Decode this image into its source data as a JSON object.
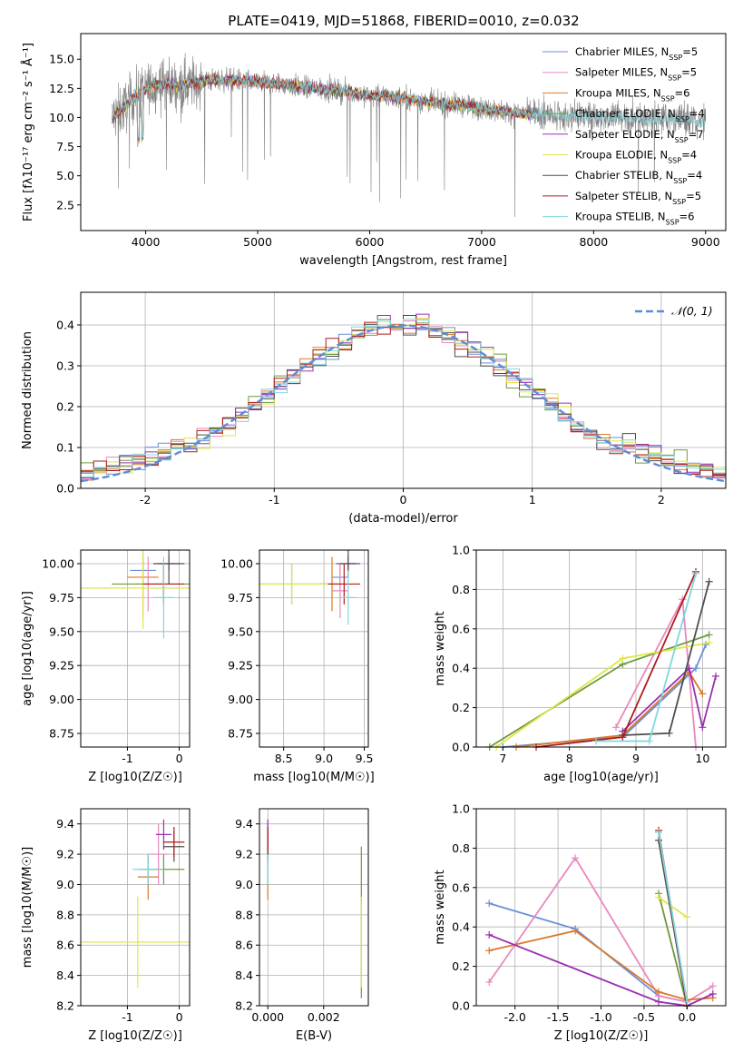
{
  "figure": {
    "title": "PLATE=0419, MJD=51868, FIBERID=0010, z=0.032"
  },
  "palette": {
    "models": [
      {
        "label": "Chabrier MILES, N",
        "sub": "SSP",
        "tail": "=5",
        "color": "#6b8fdc"
      },
      {
        "label": "Salpeter MILES, N",
        "sub": "SSP",
        "tail": "=5",
        "color": "#e889bd"
      },
      {
        "label": "Kroupa MILES, N",
        "sub": "SSP",
        "tail": "=6",
        "color": "#d9792c"
      },
      {
        "label": "Chabrier ELODIE, N",
        "sub": "SSP",
        "tail": "=4",
        "color": "#6c9a3c"
      },
      {
        "label": "Salpeter ELODIE, N",
        "sub": "SSP",
        "tail": "=7",
        "color": "#9b30b0"
      },
      {
        "label": "Kroupa ELODIE, N",
        "sub": "SSP",
        "tail": "=4",
        "color": "#dfe54c"
      },
      {
        "label": "Chabrier STELIB, N",
        "sub": "SSP",
        "tail": "=4",
        "color": "#4d4d4d"
      },
      {
        "label": "Salpeter STELIB, N",
        "sub": "SSP",
        "tail": "=5",
        "color": "#b01b1b"
      },
      {
        "label": "Kroupa STELIB, N",
        "sub": "SSP",
        "tail": "=6",
        "color": "#7fd7e0"
      }
    ],
    "data_color": "#7f7f7f",
    "gauss_color": "#5b8bd9"
  },
  "chart_data": [
    {
      "id": "spectrum",
      "type": "line",
      "xlabel": "wavelength [Angstrom, rest frame]",
      "ylabel": "Flux [fλ10⁻¹⁷ erg cm⁻² s⁻¹ Å⁻¹]",
      "xlim": [
        3420,
        9180
      ],
      "ylim": [
        0.3,
        17.2
      ],
      "xticks": [
        4000,
        5000,
        6000,
        7000,
        8000,
        9000
      ],
      "yticks": [
        2.5,
        5.0,
        7.5,
        10.0,
        12.5,
        15.0
      ],
      "continuum": {
        "x": [
          3700,
          3800,
          3900,
          4000,
          4100,
          4200,
          4300,
          4400,
          4500,
          4600,
          4800,
          5000,
          5200,
          5400,
          5600,
          5800,
          6000,
          6200,
          6400,
          6600,
          6800,
          7000,
          7200,
          7400
        ],
        "y": [
          10.0,
          10.8,
          11.8,
          12.4,
          12.8,
          12.9,
          12.7,
          12.9,
          13.1,
          13.2,
          13.2,
          13.0,
          12.9,
          12.6,
          12.4,
          12.2,
          11.9,
          11.8,
          11.5,
          11.2,
          11.1,
          10.8,
          10.5,
          10.3
        ]
      },
      "data_range": [
        3700,
        9000
      ]
    },
    {
      "id": "residuals",
      "type": "bar",
      "xlabel": "(data-model)/error",
      "ylabel": "Normed distribution",
      "xlim": [
        -2.5,
        2.5
      ],
      "ylim": [
        0,
        0.48
      ],
      "xticks": [
        -2,
        -1,
        0,
        1,
        2
      ],
      "yticks": [
        0.0,
        0.1,
        0.2,
        0.3,
        0.4
      ],
      "legend": "𝒩(0, 1)",
      "legend_position": "top-right",
      "bin_width": 0.1
    },
    {
      "id": "age_vs_Z",
      "type": "scatter",
      "xlabel": "Z [log10(Z/Z☉)]",
      "ylabel": "age  [log10(age/yr)]",
      "xlim": [
        -1.9,
        0.2
      ],
      "ylim": [
        8.65,
        10.1
      ],
      "xticks": [
        -1,
        0
      ],
      "yticks": [
        8.75,
        9.0,
        9.25,
        9.5,
        9.75,
        10.0
      ],
      "points": [
        {
          "x": -0.7,
          "y": 9.95,
          "xerr": 0.25,
          "yerr": 0.1
        },
        {
          "x": -0.6,
          "y": 9.85,
          "xerr": 0.25,
          "yerr": 0.2
        },
        {
          "x": -0.7,
          "y": 9.9,
          "xerr": 0.3,
          "yerr": 0.3
        },
        {
          "x": -0.3,
          "y": 9.85,
          "xerr": 1.0,
          "yerr": 0.15
        },
        {
          "x": -0.2,
          "y": 10.0,
          "xerr": 0.2,
          "yerr": 0.05
        },
        {
          "x": -0.7,
          "y": 9.82,
          "xerr": 1.2,
          "yerr": 0.3
        },
        {
          "x": -0.2,
          "y": 10.0,
          "xerr": 0.3,
          "yerr": 0.15
        },
        {
          "x": -0.3,
          "y": 9.85,
          "xerr": 0.4,
          "yerr": 0.15
        },
        {
          "x": -0.3,
          "y": 9.75,
          "xerr": 0.2,
          "yerr": 0.3
        }
      ]
    },
    {
      "id": "age_vs_mass",
      "type": "scatter",
      "xlabel": "mass [log10(M/M☉)]",
      "ylabel": "",
      "xlim": [
        8.2,
        9.55
      ],
      "ylim": [
        8.65,
        10.1
      ],
      "xticks": [
        8.5,
        9.0,
        9.5
      ],
      "yticks": [
        8.75,
        9.0,
        9.25,
        9.5,
        9.75,
        10.0
      ],
      "points": [
        {
          "x": 9.2,
          "y": 9.9,
          "xerr": 0.1,
          "yerr": 0.1
        },
        {
          "x": 9.2,
          "y": 9.8,
          "xerr": 0.1,
          "yerr": 0.2
        },
        {
          "x": 9.1,
          "y": 9.85,
          "xerr": 0.15,
          "yerr": 0.2
        },
        {
          "x": 8.6,
          "y": 9.85,
          "xerr": 0.6,
          "yerr": 0.15
        },
        {
          "x": 9.3,
          "y": 10.0,
          "xerr": 0.15,
          "yerr": 0.05
        },
        {
          "x": 8.6,
          "y": 9.85,
          "xerr": 0.6,
          "yerr": 0.15
        },
        {
          "x": 9.3,
          "y": 10.0,
          "xerr": 0.1,
          "yerr": 0.1
        },
        {
          "x": 9.25,
          "y": 9.85,
          "xerr": 0.2,
          "yerr": 0.15
        },
        {
          "x": 9.3,
          "y": 9.75,
          "xerr": 0.1,
          "yerr": 0.2
        }
      ]
    },
    {
      "id": "weight_vs_age",
      "type": "line",
      "xlabel": "age  [log10(age/yr)]",
      "ylabel": "mass weight",
      "xlim": [
        6.6,
        10.35
      ],
      "ylim": [
        0,
        1.0
      ],
      "xticks": [
        7,
        8,
        9,
        10
      ],
      "yticks": [
        0.0,
        0.2,
        0.4,
        0.6,
        0.8,
        1.0
      ],
      "series": [
        {
          "values": [
            [
              7.0,
              0.0
            ],
            [
              8.8,
              0.05
            ],
            [
              9.9,
              0.4
            ],
            [
              10.05,
              0.52
            ]
          ]
        },
        {
          "values": [
            [
              8.7,
              0.1
            ],
            [
              9.7,
              0.75
            ],
            [
              9.9,
              0.0
            ]
          ]
        },
        {
          "values": [
            [
              7.2,
              0.0
            ],
            [
              8.8,
              0.06
            ],
            [
              9.8,
              0.38
            ],
            [
              10.0,
              0.27
            ]
          ]
        },
        {
          "values": [
            [
              6.8,
              0.0
            ],
            [
              8.8,
              0.42
            ],
            [
              10.1,
              0.57
            ]
          ]
        },
        {
          "values": [
            [
              8.8,
              0.08
            ],
            [
              9.8,
              0.4
            ],
            [
              10.0,
              0.1
            ],
            [
              10.2,
              0.36
            ]
          ]
        },
        {
          "values": [
            [
              6.9,
              0.0
            ],
            [
              8.8,
              0.45
            ],
            [
              10.1,
              0.53
            ]
          ]
        },
        {
          "values": [
            [
              8.8,
              0.06
            ],
            [
              9.5,
              0.07
            ],
            [
              10.1,
              0.84
            ]
          ]
        },
        {
          "values": [
            [
              7.5,
              0.0
            ],
            [
              8.8,
              0.05
            ],
            [
              9.9,
              0.89
            ]
          ]
        },
        {
          "values": [
            [
              8.4,
              0.03
            ],
            [
              9.2,
              0.03
            ],
            [
              9.9,
              0.88
            ]
          ]
        }
      ]
    },
    {
      "id": "mass_vs_Z",
      "type": "scatter",
      "xlabel": "Z [log10(Z/Z☉)]",
      "ylabel": "mass [log10(M/M☉)]",
      "xlim": [
        -1.9,
        0.2
      ],
      "ylim": [
        8.2,
        9.5
      ],
      "xticks": [
        -1,
        0
      ],
      "yticks": [
        8.2,
        8.4,
        8.6,
        8.8,
        9.0,
        9.2,
        9.4
      ],
      "points": [
        {
          "x": -0.6,
          "y": 9.1,
          "xerr": 0.2,
          "yerr": 0.1
        },
        {
          "x": -0.4,
          "y": 9.2,
          "xerr": 0.2,
          "yerr": 0.2
        },
        {
          "x": -0.6,
          "y": 9.05,
          "xerr": 0.2,
          "yerr": 0.15
        },
        {
          "x": -0.3,
          "y": 9.1,
          "xerr": 0.4,
          "yerr": 0.1
        },
        {
          "x": -0.3,
          "y": 9.33,
          "xerr": 0.15,
          "yerr": 0.1
        },
        {
          "x": -0.8,
          "y": 8.62,
          "xerr": 1.2,
          "yerr": 0.3
        },
        {
          "x": -0.1,
          "y": 9.25,
          "xerr": 0.2,
          "yerr": 0.1
        },
        {
          "x": -0.1,
          "y": 9.28,
          "xerr": 0.2,
          "yerr": 0.1
        },
        {
          "x": -0.6,
          "y": 9.1,
          "xerr": 0.3,
          "yerr": 0.1
        }
      ]
    },
    {
      "id": "mass_vs_ebv",
      "type": "scatter",
      "xlabel": "E(B-V)",
      "ylabel": "",
      "xlim": [
        -0.0003,
        0.0036
      ],
      "ylim": [
        8.2,
        9.5
      ],
      "xticks": [
        0.0,
        0.002
      ],
      "yticks": [
        8.2,
        8.4,
        8.6,
        8.8,
        9.0,
        9.2,
        9.4
      ],
      "points": [
        {
          "x": 0.0,
          "y": 9.1,
          "xerr": 0,
          "yerr": 0.1
        },
        {
          "x": 0.0,
          "y": 9.2,
          "xerr": 0,
          "yerr": 0.2
        },
        {
          "x": 0.0,
          "y": 9.05,
          "xerr": 0,
          "yerr": 0.15
        },
        {
          "x": 0.00335,
          "y": 8.75,
          "xerr": 0,
          "yerr": 0.5
        },
        {
          "x": 0.0,
          "y": 9.33,
          "xerr": 0,
          "yerr": 0.1
        },
        {
          "x": 0.00335,
          "y": 8.62,
          "xerr": 0,
          "yerr": 0.3
        },
        {
          "x": 0.0,
          "y": 9.25,
          "xerr": 0,
          "yerr": 0.1
        },
        {
          "x": 0.0,
          "y": 9.28,
          "xerr": 0,
          "yerr": 0.1
        },
        {
          "x": 0.0,
          "y": 9.1,
          "xerr": 0,
          "yerr": 0.1
        }
      ]
    },
    {
      "id": "weight_vs_Z",
      "type": "line",
      "xlabel": "Z [log10(Z/Z☉)]",
      "ylabel": "mass weight",
      "xlim": [
        -2.45,
        0.45
      ],
      "ylim": [
        0,
        1.0
      ],
      "xticks": [
        -2.0,
        -1.5,
        -1.0,
        -0.5,
        0.0
      ],
      "yticks": [
        0.0,
        0.2,
        0.4,
        0.6,
        0.8,
        1.0
      ],
      "series": [
        {
          "values": [
            [
              -2.3,
              0.52
            ],
            [
              -1.3,
              0.39
            ],
            [
              -0.33,
              0.05
            ],
            [
              0.0,
              0.02
            ]
          ]
        },
        {
          "values": [
            [
              -2.3,
              0.12
            ],
            [
              -1.3,
              0.75
            ],
            [
              -0.33,
              0.05
            ],
            [
              0.0,
              0.02
            ],
            [
              0.3,
              0.1
            ]
          ]
        },
        {
          "values": [
            [
              -2.3,
              0.28
            ],
            [
              -1.3,
              0.38
            ],
            [
              -0.33,
              0.07
            ],
            [
              0.0,
              0.03
            ],
            [
              0.3,
              0.04
            ]
          ]
        },
        {
          "values": [
            [
              -0.33,
              0.57
            ],
            [
              0.0,
              0.0
            ]
          ]
        },
        {
          "values": [
            [
              -2.3,
              0.36
            ],
            [
              -0.33,
              0.02
            ],
            [
              0.0,
              0.0
            ],
            [
              0.3,
              0.06
            ]
          ]
        },
        {
          "values": [
            [
              -0.33,
              0.55
            ],
            [
              0.0,
              0.45
            ]
          ]
        },
        {
          "values": [
            [
              -0.33,
              0.84
            ],
            [
              0.0,
              0.0
            ]
          ]
        },
        {
          "values": [
            [
              -0.33,
              0.89
            ],
            [
              0.0,
              0.0
            ]
          ]
        },
        {
          "values": [
            [
              -0.33,
              0.88
            ],
            [
              0.0,
              0.02
            ]
          ]
        }
      ]
    }
  ]
}
